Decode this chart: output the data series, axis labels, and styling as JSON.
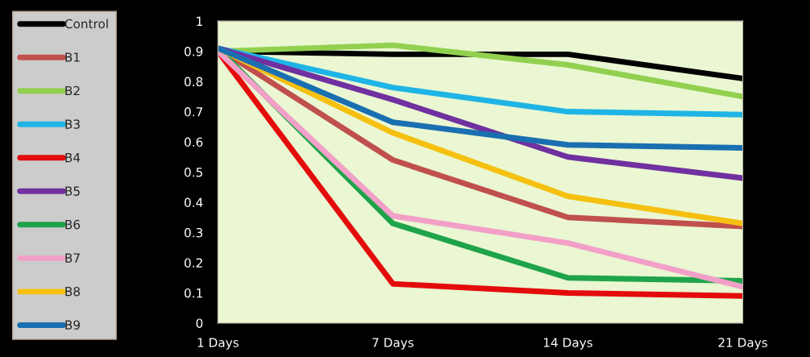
{
  "chart_data": {
    "type": "line",
    "categories": [
      "1 Days",
      "7 Days",
      "14 Days",
      "21 Days"
    ],
    "series": [
      {
        "name": "Control",
        "color": "#000000",
        "values": [
          0.9,
          0.89,
          0.89,
          0.81
        ]
      },
      {
        "name": "B1",
        "color": "#c0504d",
        "values": [
          0.91,
          0.54,
          0.35,
          0.32
        ]
      },
      {
        "name": "B2",
        "color": "#92d050",
        "values": [
          0.9,
          0.92,
          0.855,
          0.75
        ]
      },
      {
        "name": "B3",
        "color": "#1fb4e6",
        "values": [
          0.91,
          0.78,
          0.7,
          0.69
        ]
      },
      {
        "name": "B4",
        "color": "#e30b0b",
        "values": [
          0.9,
          0.13,
          0.1,
          0.09
        ]
      },
      {
        "name": "B5",
        "color": "#7030a0",
        "values": [
          0.91,
          0.74,
          0.55,
          0.48
        ]
      },
      {
        "name": "B6",
        "color": "#1fa34a",
        "values": [
          0.91,
          0.33,
          0.15,
          0.14
        ]
      },
      {
        "name": "B7",
        "color": "#f2a0c8",
        "values": [
          0.9,
          0.355,
          0.265,
          0.12
        ]
      },
      {
        "name": "B8",
        "color": "#f5c010",
        "values": [
          0.91,
          0.63,
          0.42,
          0.33
        ]
      },
      {
        "name": "B9",
        "color": "#1a6fb0",
        "values": [
          0.91,
          0.665,
          0.59,
          0.58
        ]
      }
    ],
    "ylim": [
      0,
      1
    ],
    "yticks": [
      0,
      0.1,
      0.2,
      0.3,
      0.4,
      0.5,
      0.6,
      0.7,
      0.8,
      0.9,
      1
    ],
    "grid": false,
    "legend": "left",
    "marker": "none",
    "line_style": "solid"
  }
}
